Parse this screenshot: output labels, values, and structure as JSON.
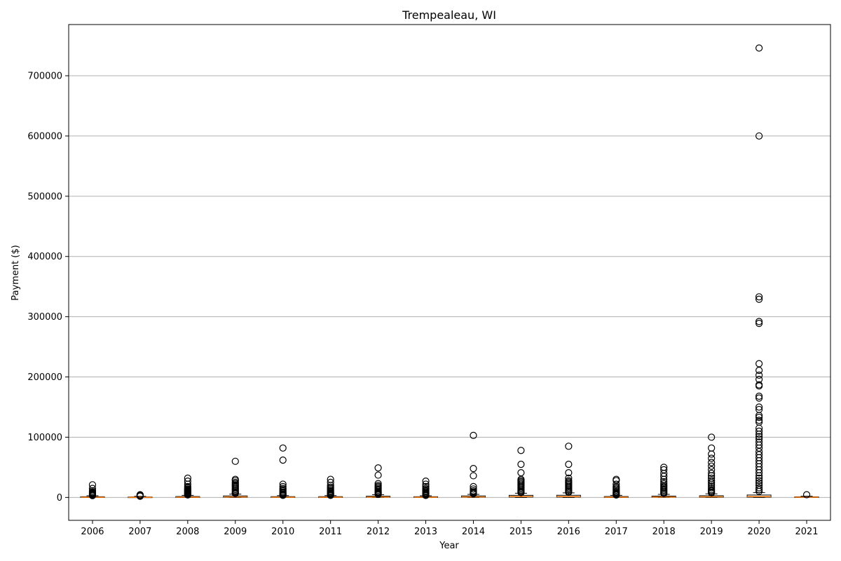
{
  "chart_data": {
    "type": "box",
    "title": "Trempealeau, WI",
    "xlabel": "Year",
    "ylabel": "Payment ($)",
    "ylim": [
      -38000,
      785000
    ],
    "yticks": [
      0,
      100000,
      200000,
      300000,
      400000,
      500000,
      600000,
      700000
    ],
    "ytick_labels": [
      "0",
      "100000",
      "200000",
      "300000",
      "400000",
      "500000",
      "600000",
      "700000"
    ],
    "grid": "horizontal",
    "colors": {
      "median": "#ff7f0e",
      "box": "#000000",
      "grid": "#b0b0b0"
    },
    "categories": [
      "2006",
      "2007",
      "2008",
      "2009",
      "2010",
      "2011",
      "2012",
      "2013",
      "2014",
      "2015",
      "2016",
      "2017",
      "2018",
      "2019",
      "2020",
      "2021"
    ],
    "boxes": [
      {
        "year": "2006",
        "q1": 0,
        "median": 300,
        "q3": 1200,
        "whisker_low": 0,
        "whisker_high": 2800,
        "outliers": [
          21000,
          15000,
          11000,
          9000,
          8000,
          7000,
          6000,
          5000,
          4200,
          3500,
          3000
        ]
      },
      {
        "year": "2007",
        "q1": 0,
        "median": 150,
        "q3": 800,
        "whisker_low": 0,
        "whisker_high": 1800,
        "outliers": [
          4500,
          4000,
          3600,
          3200,
          2800,
          2400,
          2000
        ]
      },
      {
        "year": "2008",
        "q1": 0,
        "median": 400,
        "q3": 1500,
        "whisker_low": 0,
        "whisker_high": 3500,
        "outliers": [
          32000,
          27000,
          22000,
          18000,
          16000,
          14000,
          13000,
          12000,
          11000,
          10000,
          9000,
          8000,
          7000,
          6000,
          5000,
          4200
        ]
      },
      {
        "year": "2009",
        "q1": 200,
        "median": 800,
        "q3": 2500,
        "whisker_low": 0,
        "whisker_high": 5500,
        "outliers": [
          60000,
          30000,
          28000,
          25000,
          23000,
          21000,
          19000,
          17000,
          15000,
          13000,
          11000,
          9000,
          7500,
          6500
        ]
      },
      {
        "year": "2010",
        "q1": 0,
        "median": 300,
        "q3": 1300,
        "whisker_low": 0,
        "whisker_high": 3000,
        "outliers": [
          82000,
          62000,
          22000,
          18000,
          15000,
          13000,
          11000,
          9000,
          7500,
          6000,
          5000,
          4000,
          3500
        ]
      },
      {
        "year": "2011",
        "q1": 0,
        "median": 300,
        "q3": 1300,
        "whisker_low": 0,
        "whisker_high": 3000,
        "outliers": [
          30000,
          25000,
          20000,
          17000,
          15000,
          13000,
          11000,
          9500,
          8000,
          7000,
          6000,
          5000,
          4000,
          3500
        ]
      },
      {
        "year": "2012",
        "q1": 200,
        "median": 700,
        "q3": 2000,
        "whisker_low": 0,
        "whisker_high": 4500,
        "outliers": [
          49000,
          37000,
          23000,
          20000,
          18000,
          16000,
          14000,
          12000,
          10000,
          9000,
          8000,
          7000,
          6000,
          5000
        ]
      },
      {
        "year": "2013",
        "q1": 0,
        "median": 300,
        "q3": 1200,
        "whisker_low": 0,
        "whisker_high": 2800,
        "outliers": [
          27000,
          22000,
          18000,
          15000,
          13000,
          11000,
          9500,
          8000,
          7000,
          6000,
          5000,
          4000,
          3300
        ]
      },
      {
        "year": "2014",
        "q1": 300,
        "median": 900,
        "q3": 2500,
        "whisker_low": 0,
        "whisker_high": 5000,
        "outliers": [
          103000,
          48000,
          36000,
          18000,
          14000,
          11000,
          9000,
          8000,
          7000,
          6000
        ]
      },
      {
        "year": "2015",
        "q1": 600,
        "median": 1500,
        "q3": 3500,
        "whisker_low": 0,
        "whisker_high": 7000,
        "outliers": [
          78000,
          55000,
          41000,
          30000,
          28000,
          26000,
          24000,
          22000,
          20000,
          18000,
          16000,
          14000,
          12000,
          10000,
          9000,
          8000
        ]
      },
      {
        "year": "2016",
        "q1": 600,
        "median": 1500,
        "q3": 3600,
        "whisker_low": 0,
        "whisker_high": 7500,
        "outliers": [
          85000,
          55000,
          41000,
          32000,
          28000,
          26000,
          24000,
          22000,
          20000,
          18000,
          16000,
          14000,
          12000,
          10000,
          8500
        ]
      },
      {
        "year": "2017",
        "q1": 0,
        "median": 400,
        "q3": 1500,
        "whisker_low": 0,
        "whisker_high": 3500,
        "outliers": [
          30000,
          28000,
          22000,
          18000,
          16000,
          14000,
          12000,
          10000,
          8500,
          7000,
          6000,
          5000,
          4000
        ]
      },
      {
        "year": "2018",
        "q1": 200,
        "median": 700,
        "q3": 2200,
        "whisker_low": 0,
        "whisker_high": 5000,
        "outliers": [
          50000,
          46000,
          40000,
          35000,
          30000,
          26000,
          23000,
          20000,
          18000,
          16000,
          14000,
          12000,
          10000,
          8000,
          6500
        ]
      },
      {
        "year": "2019",
        "q1": 300,
        "median": 1000,
        "q3": 2800,
        "whisker_low": 0,
        "whisker_high": 6000,
        "outliers": [
          100000,
          82000,
          72000,
          65000,
          58000,
          52000,
          46000,
          40000,
          36000,
          32000,
          28000,
          25000,
          22000,
          19000,
          16000,
          13000,
          11000,
          9000,
          7500
        ]
      },
      {
        "year": "2020",
        "q1": 500,
        "median": 1500,
        "q3": 4000,
        "whisker_low": 0,
        "whisker_high": 8000,
        "outliers": [
          746000,
          600000,
          333000,
          329000,
          292000,
          289000,
          222000,
          211000,
          203000,
          196000,
          187000,
          185000,
          168000,
          165000,
          150000,
          146000,
          136000,
          133000,
          128000,
          125000,
          115000,
          110000,
          105000,
          101000,
          97000,
          92000,
          87000,
          82000,
          76000,
          71000,
          66000,
          61000,
          56000,
          51000,
          46000,
          41000,
          36000,
          32000,
          28000,
          24000,
          20000,
          16000,
          13000,
          10000
        ]
      },
      {
        "year": "2021",
        "q1": 0,
        "median": 300,
        "q3": 1000,
        "whisker_low": 0,
        "whisker_high": 2000,
        "outliers": [
          4500
        ]
      }
    ]
  }
}
